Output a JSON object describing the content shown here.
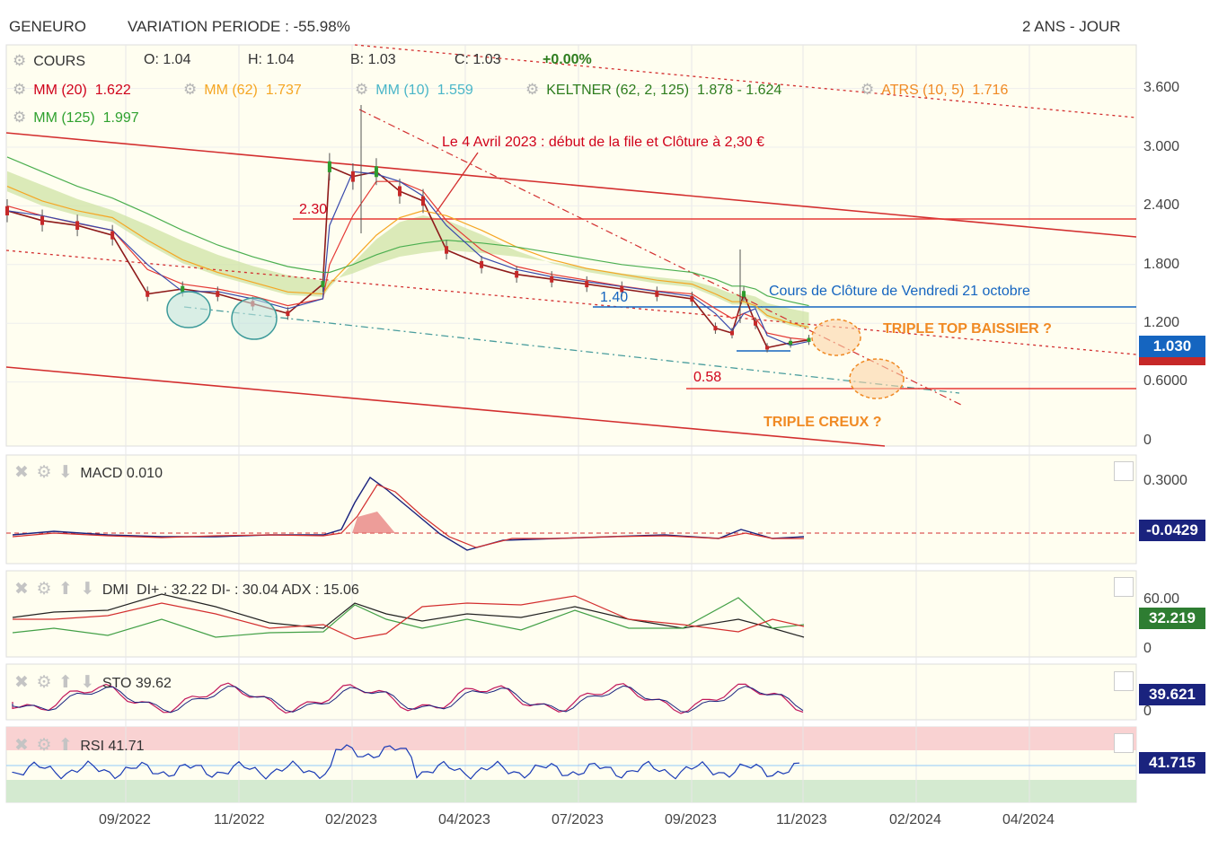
{
  "header": {
    "symbol": "GENEURO",
    "variation": "VARIATION PERIODE : -55.98%",
    "range": "2 ANS - JOUR"
  },
  "legend": {
    "cours": {
      "label": "COURS",
      "o": "O: 1.04",
      "h": "H: 1.04",
      "b": "B: 1.03",
      "c": "C: 1.03",
      "chg": "+0.00%"
    },
    "mm20": {
      "label": "MM (20)",
      "value": "1.622",
      "color": "#d0021b"
    },
    "mm62": {
      "label": "MM (62)",
      "value": "1.737",
      "color": "#f5a623"
    },
    "mm10": {
      "label": "MM (10)",
      "value": "1.559",
      "color": "#4ab6c8"
    },
    "keltner": {
      "label": "KELTNER (62, 2, 125)",
      "value": "1.878 - 1.624",
      "color": "#2e7d1e"
    },
    "atrs": {
      "label": "ATRS (10, 5)",
      "value": "1.716",
      "color": "#f08a24"
    },
    "mm125": {
      "label": "MM (125)",
      "value": "1.997",
      "color": "#2fa12f"
    }
  },
  "annotations": {
    "avril": "Le 4 Avril 2023 : début de la file et Clôture à 2,30 €",
    "level_230": "2.30",
    "level_140": "1.40",
    "level_058": "0.58",
    "cloture": "Cours de Clôture de Vendredi 21 octobre",
    "triple_top": "TRIPLE TOP BAISSIER ?",
    "triple_creux": "TRIPLE CREUX ?"
  },
  "price_axis": {
    "ticks": [
      "3.600",
      "3.000",
      "2.400",
      "1.800",
      "1.200",
      "0.6000",
      "0"
    ],
    "last": "1.030",
    "last_color": "#1565c0"
  },
  "panels": {
    "macd": {
      "label": "MACD",
      "value": "0.010",
      "ticks": [
        "0.3000"
      ],
      "last": "-0.0429",
      "last_color": "#1a237e"
    },
    "dmi": {
      "label": "DMI",
      "value": "DI+ : 32.22 DI- : 30.04 ADX : 15.06",
      "ticks": [
        "60.00",
        "0"
      ],
      "last": "32.219",
      "last_color": "#2e7d32"
    },
    "sto": {
      "label": "STO",
      "value": "39.62",
      "ticks": [
        "0"
      ],
      "last": "39.621",
      "last_color": "#1a237e"
    },
    "rsi": {
      "label": "RSI",
      "value": "41.71",
      "last": "41.715",
      "last_color": "#1a237e"
    }
  },
  "x_axis": [
    "09/2022",
    "11/2022",
    "02/2023",
    "04/2023",
    "07/2023",
    "09/2023",
    "11/2023",
    "02/2024",
    "04/2024"
  ],
  "chart_data": {
    "type": "line",
    "title": "GENEURO",
    "x_dates": [
      "2022-07-25",
      "2022-08-15",
      "2022-09-05",
      "2022-09-26",
      "2022-10-17",
      "2022-11-07",
      "2022-11-28",
      "2022-12-19",
      "2023-01-09",
      "2023-01-30",
      "2023-02-03",
      "2023-02-17",
      "2023-03-03",
      "2023-03-17",
      "2023-03-31",
      "2023-04-14",
      "2023-05-05",
      "2023-05-26",
      "2023-06-16",
      "2023-07-07",
      "2023-07-28",
      "2023-08-18",
      "2023-09-08",
      "2023-09-22",
      "2023-10-02",
      "2023-10-09",
      "2023-10-16",
      "2023-10-23",
      "2023-11-06",
      "2023-11-17"
    ],
    "series": [
      {
        "name": "COURS",
        "values": [
          2.35,
          2.25,
          2.2,
          2.1,
          1.5,
          1.55,
          1.5,
          1.4,
          1.3,
          1.6,
          2.8,
          2.7,
          2.75,
          2.55,
          2.45,
          1.95,
          1.8,
          1.7,
          1.65,
          1.6,
          1.55,
          1.5,
          1.45,
          1.15,
          1.1,
          1.5,
          1.2,
          0.95,
          1.0,
          1.03
        ]
      },
      {
        "name": "MM (20)",
        "values": [
          2.4,
          2.3,
          2.22,
          2.15,
          1.75,
          1.6,
          1.55,
          1.48,
          1.38,
          1.45,
          1.8,
          2.3,
          2.65,
          2.65,
          2.55,
          2.25,
          1.95,
          1.78,
          1.7,
          1.64,
          1.58,
          1.53,
          1.5,
          1.35,
          1.25,
          1.3,
          1.25,
          1.1,
          1.05,
          1.03
        ]
      },
      {
        "name": "MM (62)",
        "values": [
          2.6,
          2.45,
          2.35,
          2.28,
          2.05,
          1.85,
          1.72,
          1.62,
          1.52,
          1.5,
          1.6,
          1.85,
          2.1,
          2.28,
          2.35,
          2.3,
          2.15,
          1.98,
          1.85,
          1.76,
          1.7,
          1.64,
          1.6,
          1.5,
          1.42,
          1.42,
          1.38,
          1.28,
          1.2,
          1.16
        ]
      },
      {
        "name": "MM (125)",
        "values": [
          2.9,
          2.75,
          2.6,
          2.48,
          2.32,
          2.15,
          2.0,
          1.88,
          1.78,
          1.72,
          1.72,
          1.8,
          1.9,
          1.98,
          2.02,
          2.05,
          2.02,
          1.98,
          1.92,
          1.86,
          1.8,
          1.76,
          1.72,
          1.65,
          1.58,
          1.58,
          1.55,
          1.48,
          1.42,
          1.38
        ]
      }
    ],
    "levels": [
      2.3,
      1.4,
      0.58
    ],
    "ylim": [
      0,
      3.9
    ],
    "xlim": [
      "2022-07-25",
      "2024-05-31"
    ]
  }
}
